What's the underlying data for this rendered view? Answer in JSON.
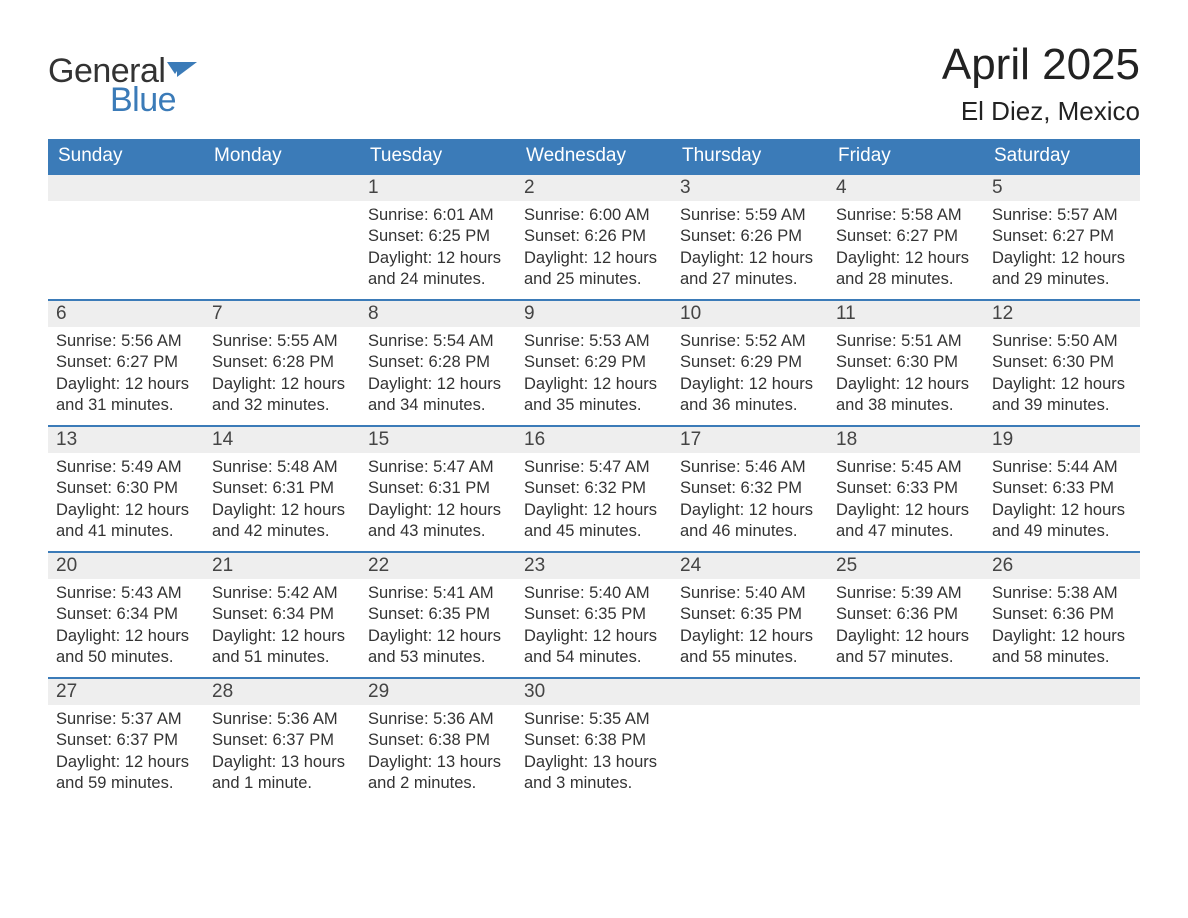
{
  "logo": {
    "text1": "General",
    "text2": "Blue"
  },
  "title": "April 2025",
  "location": "El Diez, Mexico",
  "colors": {
    "header_bg": "#3b7bb8",
    "daynum_bg": "#eeeeee",
    "border": "#3b7bb8",
    "text": "#333333"
  },
  "day_headers": [
    "Sunday",
    "Monday",
    "Tuesday",
    "Wednesday",
    "Thursday",
    "Friday",
    "Saturday"
  ],
  "weeks": [
    [
      null,
      null,
      {
        "n": "1",
        "sr": "Sunrise: 6:01 AM",
        "ss": "Sunset: 6:25 PM",
        "d1": "Daylight: 12 hours",
        "d2": "and 24 minutes."
      },
      {
        "n": "2",
        "sr": "Sunrise: 6:00 AM",
        "ss": "Sunset: 6:26 PM",
        "d1": "Daylight: 12 hours",
        "d2": "and 25 minutes."
      },
      {
        "n": "3",
        "sr": "Sunrise: 5:59 AM",
        "ss": "Sunset: 6:26 PM",
        "d1": "Daylight: 12 hours",
        "d2": "and 27 minutes."
      },
      {
        "n": "4",
        "sr": "Sunrise: 5:58 AM",
        "ss": "Sunset: 6:27 PM",
        "d1": "Daylight: 12 hours",
        "d2": "and 28 minutes."
      },
      {
        "n": "5",
        "sr": "Sunrise: 5:57 AM",
        "ss": "Sunset: 6:27 PM",
        "d1": "Daylight: 12 hours",
        "d2": "and 29 minutes."
      }
    ],
    [
      {
        "n": "6",
        "sr": "Sunrise: 5:56 AM",
        "ss": "Sunset: 6:27 PM",
        "d1": "Daylight: 12 hours",
        "d2": "and 31 minutes."
      },
      {
        "n": "7",
        "sr": "Sunrise: 5:55 AM",
        "ss": "Sunset: 6:28 PM",
        "d1": "Daylight: 12 hours",
        "d2": "and 32 minutes."
      },
      {
        "n": "8",
        "sr": "Sunrise: 5:54 AM",
        "ss": "Sunset: 6:28 PM",
        "d1": "Daylight: 12 hours",
        "d2": "and 34 minutes."
      },
      {
        "n": "9",
        "sr": "Sunrise: 5:53 AM",
        "ss": "Sunset: 6:29 PM",
        "d1": "Daylight: 12 hours",
        "d2": "and 35 minutes."
      },
      {
        "n": "10",
        "sr": "Sunrise: 5:52 AM",
        "ss": "Sunset: 6:29 PM",
        "d1": "Daylight: 12 hours",
        "d2": "and 36 minutes."
      },
      {
        "n": "11",
        "sr": "Sunrise: 5:51 AM",
        "ss": "Sunset: 6:30 PM",
        "d1": "Daylight: 12 hours",
        "d2": "and 38 minutes."
      },
      {
        "n": "12",
        "sr": "Sunrise: 5:50 AM",
        "ss": "Sunset: 6:30 PM",
        "d1": "Daylight: 12 hours",
        "d2": "and 39 minutes."
      }
    ],
    [
      {
        "n": "13",
        "sr": "Sunrise: 5:49 AM",
        "ss": "Sunset: 6:30 PM",
        "d1": "Daylight: 12 hours",
        "d2": "and 41 minutes."
      },
      {
        "n": "14",
        "sr": "Sunrise: 5:48 AM",
        "ss": "Sunset: 6:31 PM",
        "d1": "Daylight: 12 hours",
        "d2": "and 42 minutes."
      },
      {
        "n": "15",
        "sr": "Sunrise: 5:47 AM",
        "ss": "Sunset: 6:31 PM",
        "d1": "Daylight: 12 hours",
        "d2": "and 43 minutes."
      },
      {
        "n": "16",
        "sr": "Sunrise: 5:47 AM",
        "ss": "Sunset: 6:32 PM",
        "d1": "Daylight: 12 hours",
        "d2": "and 45 minutes."
      },
      {
        "n": "17",
        "sr": "Sunrise: 5:46 AM",
        "ss": "Sunset: 6:32 PM",
        "d1": "Daylight: 12 hours",
        "d2": "and 46 minutes."
      },
      {
        "n": "18",
        "sr": "Sunrise: 5:45 AM",
        "ss": "Sunset: 6:33 PM",
        "d1": "Daylight: 12 hours",
        "d2": "and 47 minutes."
      },
      {
        "n": "19",
        "sr": "Sunrise: 5:44 AM",
        "ss": "Sunset: 6:33 PM",
        "d1": "Daylight: 12 hours",
        "d2": "and 49 minutes."
      }
    ],
    [
      {
        "n": "20",
        "sr": "Sunrise: 5:43 AM",
        "ss": "Sunset: 6:34 PM",
        "d1": "Daylight: 12 hours",
        "d2": "and 50 minutes."
      },
      {
        "n": "21",
        "sr": "Sunrise: 5:42 AM",
        "ss": "Sunset: 6:34 PM",
        "d1": "Daylight: 12 hours",
        "d2": "and 51 minutes."
      },
      {
        "n": "22",
        "sr": "Sunrise: 5:41 AM",
        "ss": "Sunset: 6:35 PM",
        "d1": "Daylight: 12 hours",
        "d2": "and 53 minutes."
      },
      {
        "n": "23",
        "sr": "Sunrise: 5:40 AM",
        "ss": "Sunset: 6:35 PM",
        "d1": "Daylight: 12 hours",
        "d2": "and 54 minutes."
      },
      {
        "n": "24",
        "sr": "Sunrise: 5:40 AM",
        "ss": "Sunset: 6:35 PM",
        "d1": "Daylight: 12 hours",
        "d2": "and 55 minutes."
      },
      {
        "n": "25",
        "sr": "Sunrise: 5:39 AM",
        "ss": "Sunset: 6:36 PM",
        "d1": "Daylight: 12 hours",
        "d2": "and 57 minutes."
      },
      {
        "n": "26",
        "sr": "Sunrise: 5:38 AM",
        "ss": "Sunset: 6:36 PM",
        "d1": "Daylight: 12 hours",
        "d2": "and 58 minutes."
      }
    ],
    [
      {
        "n": "27",
        "sr": "Sunrise: 5:37 AM",
        "ss": "Sunset: 6:37 PM",
        "d1": "Daylight: 12 hours",
        "d2": "and 59 minutes."
      },
      {
        "n": "28",
        "sr": "Sunrise: 5:36 AM",
        "ss": "Sunset: 6:37 PM",
        "d1": "Daylight: 13 hours",
        "d2": "and 1 minute."
      },
      {
        "n": "29",
        "sr": "Sunrise: 5:36 AM",
        "ss": "Sunset: 6:38 PM",
        "d1": "Daylight: 13 hours",
        "d2": "and 2 minutes."
      },
      {
        "n": "30",
        "sr": "Sunrise: 5:35 AM",
        "ss": "Sunset: 6:38 PM",
        "d1": "Daylight: 13 hours",
        "d2": "and 3 minutes."
      },
      null,
      null,
      null
    ]
  ]
}
